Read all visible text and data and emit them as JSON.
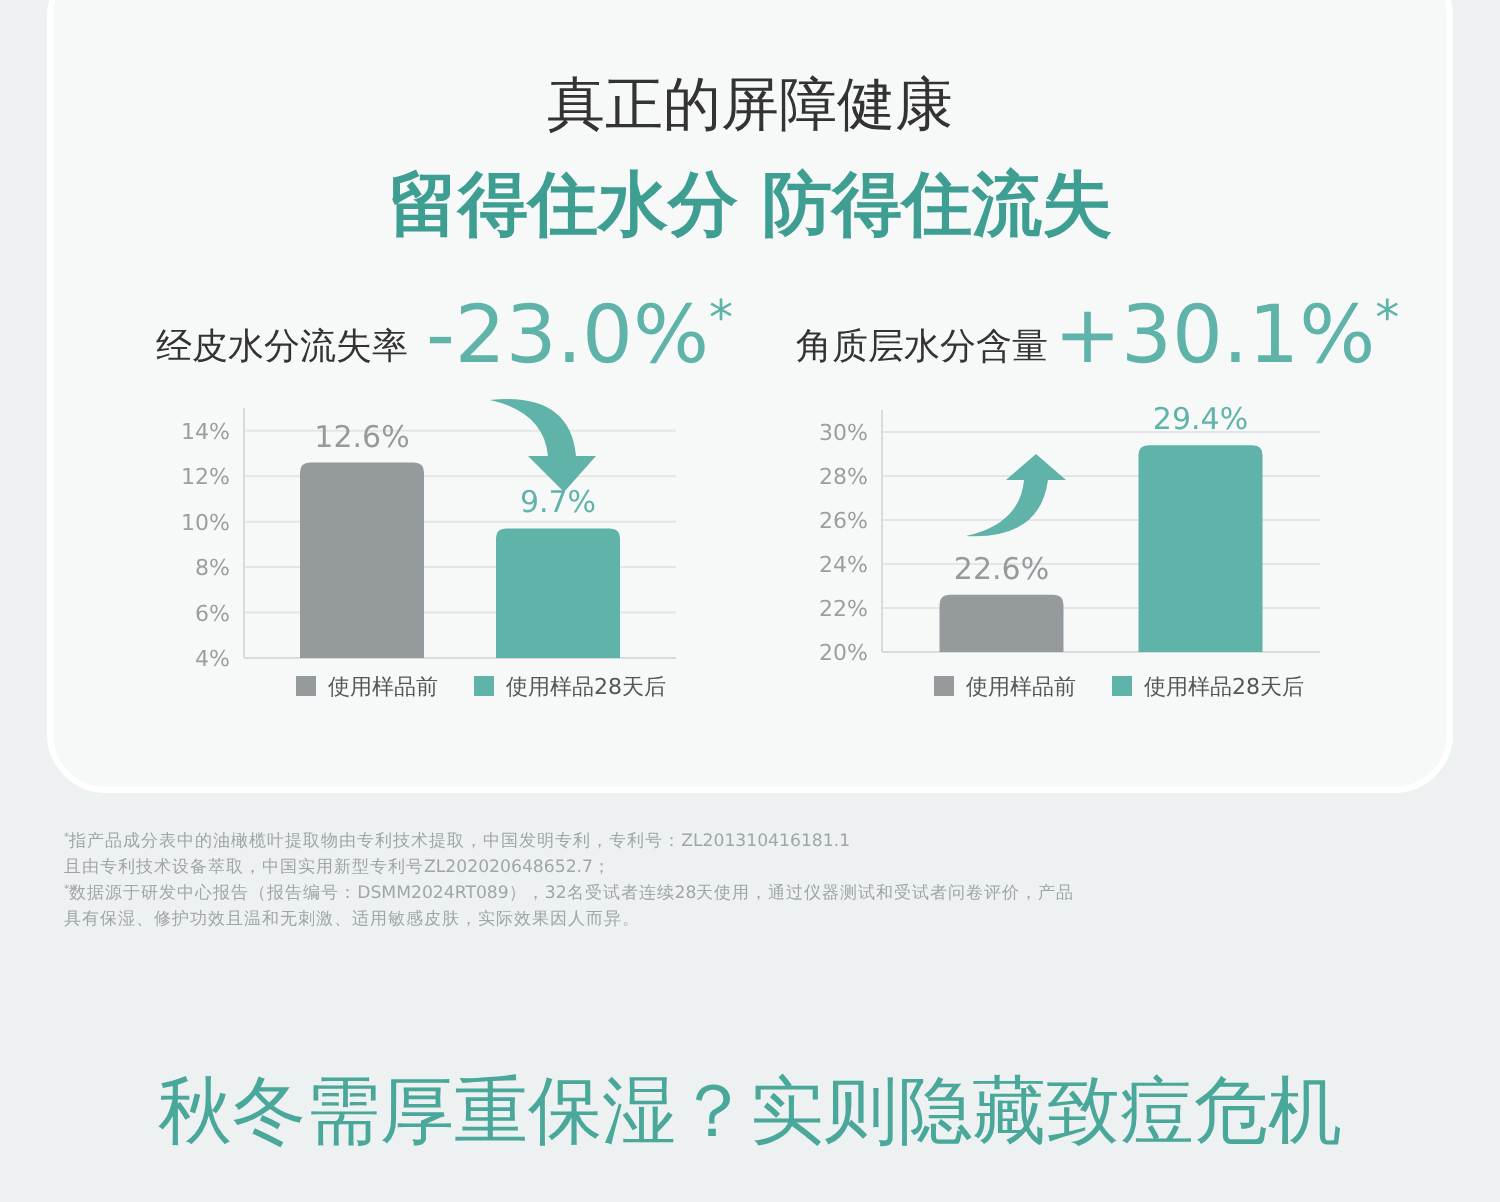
{
  "chart_data": [
    {
      "type": "other",
      "title": "真正的屏障健康",
      "subtitle": "留得住水分 防得住流失",
      "annotations": [
        "$^{*}$指产品成分表中的油橄榄叶提取物由专利技术提取，中国发明专利，专利号：ZL201310416181.1",
        "且由专利技术设备萃取，中国实用新型专利号ZL202020648652.7；",
        "$^{*}$数据源于研发中心报告（报告编号：DSMM2024RT089），32名受试者连续28天使用，通过仪器测试和受试者问卷评价，产品",
        "具有保湿、修护功效且温和无刺激、适用敏感皮肤，实际效果因人而异。",
        "秋冬需厚重保湿？实则隐藏致痘危机"
      ]
    },
    {
      "type": "bar",
      "title": "经皮水分流失率",
      "subtitle": "-23.0%$^{*}$",
      "categories": [
        null
      ],
      "series": [
        {
          "name": "使用样品前",
          "color": "#959b9c",
          "values": [
            12.6
          ],
          "value_labels": [
            "12.6%"
          ]
        },
        {
          "name": "使用样品28天后",
          "color": "#5fb3a8",
          "values": [
            9.7
          ],
          "value_labels": [
            "9.7%"
          ]
        }
      ],
      "ylim": [
        4,
        15
      ],
      "yticks": [
        {
          "value": 4,
          "label": "4%"
        },
        {
          "value": 6,
          "label": "6%"
        },
        {
          "value": 8,
          "label": "8%"
        },
        {
          "value": 10,
          "label": "10%"
        },
        {
          "value": 12,
          "label": "12%"
        },
        {
          "value": 14,
          "label": "14%"
        }
      ],
      "grid": "y",
      "legend": "bottom"
    },
    {
      "type": "bar",
      "title": "角质层水分含量",
      "subtitle": "+30.1%$^{*}$",
      "categories": [
        null
      ],
      "series": [
        {
          "name": "使用样品前",
          "color": "#959b9c",
          "values": [
            22.6
          ],
          "value_labels": [
            "22.6%"
          ]
        },
        {
          "name": "使用样品28天后",
          "color": "#5fb3a8",
          "values": [
            29.4
          ],
          "value_labels": [
            "29.4%"
          ]
        }
      ],
      "ylim": [
        20,
        31
      ],
      "yticks": [
        {
          "value": 20,
          "label": "20%"
        },
        {
          "value": 22,
          "label": "22%"
        },
        {
          "value": 24,
          "label": "24%"
        },
        {
          "value": 26,
          "label": "26%"
        },
        {
          "value": 28,
          "label": "28%"
        },
        {
          "value": 30,
          "label": "30%"
        }
      ],
      "grid": "y",
      "legend": "bottom"
    }
  ]
}
